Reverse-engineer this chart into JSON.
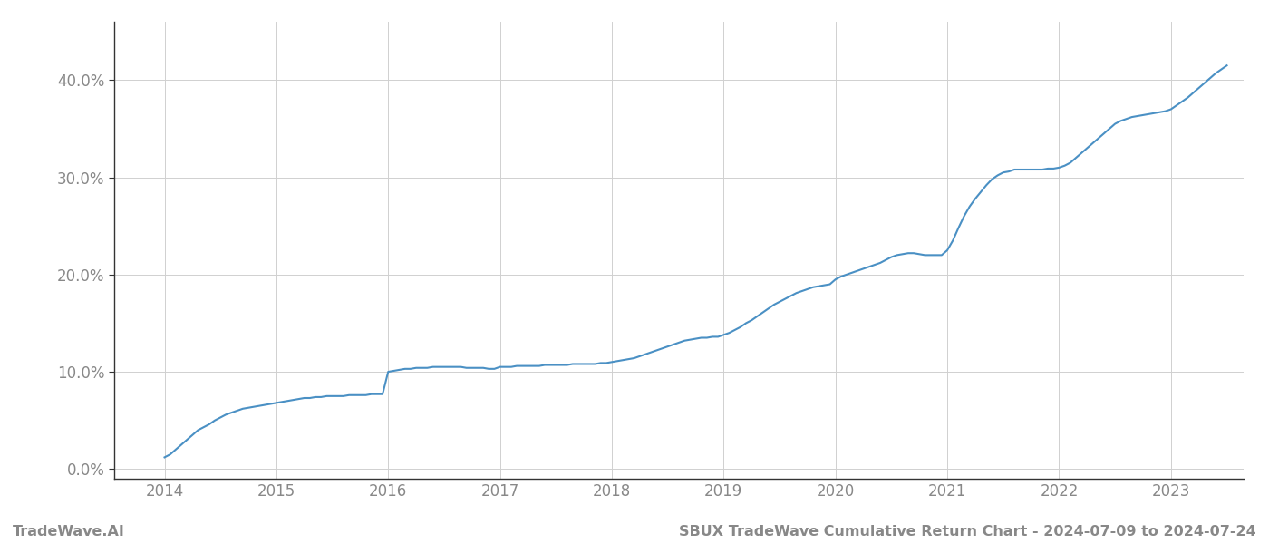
{
  "title": "SBUX TradeWave Cumulative Return Chart - 2024-07-09 to 2024-07-24",
  "watermark": "TradeWave.AI",
  "line_color": "#4a90c4",
  "line_width": 1.5,
  "background_color": "#ffffff",
  "grid_color": "#d0d0d0",
  "x_years": [
    2014,
    2015,
    2016,
    2017,
    2018,
    2019,
    2020,
    2021,
    2022,
    2023
  ],
  "x_data": [
    2014.0,
    2014.05,
    2014.1,
    2014.15,
    2014.2,
    2014.25,
    2014.3,
    2014.35,
    2014.4,
    2014.45,
    2014.5,
    2014.55,
    2014.6,
    2014.65,
    2014.7,
    2014.75,
    2014.8,
    2014.85,
    2014.9,
    2014.95,
    2015.0,
    2015.05,
    2015.1,
    2015.15,
    2015.2,
    2015.25,
    2015.3,
    2015.35,
    2015.4,
    2015.45,
    2015.5,
    2015.55,
    2015.6,
    2015.65,
    2015.7,
    2015.75,
    2015.8,
    2015.85,
    2015.9,
    2015.95,
    2016.0,
    2016.05,
    2016.1,
    2016.15,
    2016.2,
    2016.25,
    2016.3,
    2016.35,
    2016.4,
    2016.45,
    2016.5,
    2016.55,
    2016.6,
    2016.65,
    2016.7,
    2016.75,
    2016.8,
    2016.85,
    2016.9,
    2016.95,
    2017.0,
    2017.05,
    2017.1,
    2017.15,
    2017.2,
    2017.25,
    2017.3,
    2017.35,
    2017.4,
    2017.45,
    2017.5,
    2017.55,
    2017.6,
    2017.65,
    2017.7,
    2017.75,
    2017.8,
    2017.85,
    2017.9,
    2017.95,
    2018.0,
    2018.05,
    2018.1,
    2018.15,
    2018.2,
    2018.25,
    2018.3,
    2018.35,
    2018.4,
    2018.45,
    2018.5,
    2018.55,
    2018.6,
    2018.65,
    2018.7,
    2018.75,
    2018.8,
    2018.85,
    2018.9,
    2018.95,
    2019.0,
    2019.05,
    2019.1,
    2019.15,
    2019.2,
    2019.25,
    2019.3,
    2019.35,
    2019.4,
    2019.45,
    2019.5,
    2019.55,
    2019.6,
    2019.65,
    2019.7,
    2019.75,
    2019.8,
    2019.85,
    2019.9,
    2019.95,
    2020.0,
    2020.05,
    2020.1,
    2020.15,
    2020.2,
    2020.25,
    2020.3,
    2020.35,
    2020.4,
    2020.45,
    2020.5,
    2020.55,
    2020.6,
    2020.65,
    2020.7,
    2020.75,
    2020.8,
    2020.85,
    2020.9,
    2020.95,
    2021.0,
    2021.05,
    2021.1,
    2021.15,
    2021.2,
    2021.25,
    2021.3,
    2021.35,
    2021.4,
    2021.45,
    2021.5,
    2021.55,
    2021.6,
    2021.65,
    2021.7,
    2021.75,
    2021.8,
    2021.85,
    2021.9,
    2021.95,
    2022.0,
    2022.05,
    2022.1,
    2022.15,
    2022.2,
    2022.25,
    2022.3,
    2022.35,
    2022.4,
    2022.45,
    2022.5,
    2022.55,
    2022.6,
    2022.65,
    2022.7,
    2022.75,
    2022.8,
    2022.85,
    2022.9,
    2022.95,
    2023.0,
    2023.05,
    2023.1,
    2023.15,
    2023.2,
    2023.25,
    2023.3,
    2023.35,
    2023.4,
    2023.45,
    2023.5
  ],
  "y_data": [
    0.012,
    0.015,
    0.02,
    0.025,
    0.03,
    0.035,
    0.04,
    0.043,
    0.046,
    0.05,
    0.053,
    0.056,
    0.058,
    0.06,
    0.062,
    0.063,
    0.064,
    0.065,
    0.066,
    0.067,
    0.068,
    0.069,
    0.07,
    0.071,
    0.072,
    0.073,
    0.073,
    0.074,
    0.074,
    0.075,
    0.075,
    0.075,
    0.075,
    0.076,
    0.076,
    0.076,
    0.076,
    0.077,
    0.077,
    0.077,
    0.1,
    0.101,
    0.102,
    0.103,
    0.103,
    0.104,
    0.104,
    0.104,
    0.105,
    0.105,
    0.105,
    0.105,
    0.105,
    0.105,
    0.104,
    0.104,
    0.104,
    0.104,
    0.103,
    0.103,
    0.105,
    0.105,
    0.105,
    0.106,
    0.106,
    0.106,
    0.106,
    0.106,
    0.107,
    0.107,
    0.107,
    0.107,
    0.107,
    0.108,
    0.108,
    0.108,
    0.108,
    0.108,
    0.109,
    0.109,
    0.11,
    0.111,
    0.112,
    0.113,
    0.114,
    0.116,
    0.118,
    0.12,
    0.122,
    0.124,
    0.126,
    0.128,
    0.13,
    0.132,
    0.133,
    0.134,
    0.135,
    0.135,
    0.136,
    0.136,
    0.138,
    0.14,
    0.143,
    0.146,
    0.15,
    0.153,
    0.157,
    0.161,
    0.165,
    0.169,
    0.172,
    0.175,
    0.178,
    0.181,
    0.183,
    0.185,
    0.187,
    0.188,
    0.189,
    0.19,
    0.195,
    0.198,
    0.2,
    0.202,
    0.204,
    0.206,
    0.208,
    0.21,
    0.212,
    0.215,
    0.218,
    0.22,
    0.221,
    0.222,
    0.222,
    0.221,
    0.22,
    0.22,
    0.22,
    0.22,
    0.225,
    0.235,
    0.248,
    0.26,
    0.27,
    0.278,
    0.285,
    0.292,
    0.298,
    0.302,
    0.305,
    0.306,
    0.308,
    0.308,
    0.308,
    0.308,
    0.308,
    0.308,
    0.309,
    0.309,
    0.31,
    0.312,
    0.315,
    0.32,
    0.325,
    0.33,
    0.335,
    0.34,
    0.345,
    0.35,
    0.355,
    0.358,
    0.36,
    0.362,
    0.363,
    0.364,
    0.365,
    0.366,
    0.367,
    0.368,
    0.37,
    0.374,
    0.378,
    0.382,
    0.387,
    0.392,
    0.397,
    0.402,
    0.407,
    0.411,
    0.415
  ],
  "ylim": [
    -0.01,
    0.46
  ],
  "xlim": [
    2013.55,
    2023.65
  ],
  "yticks": [
    0.0,
    0.1,
    0.2,
    0.3,
    0.4
  ],
  "ytick_labels": [
    "0.0%",
    "10.0%",
    "20.0%",
    "30.0%",
    "40.0%"
  ],
  "tick_color": "#888888",
  "title_fontsize": 11.5,
  "watermark_fontsize": 11.5,
  "tick_fontsize": 12,
  "left_spine_color": "#333333",
  "bottom_spine_color": "#333333"
}
